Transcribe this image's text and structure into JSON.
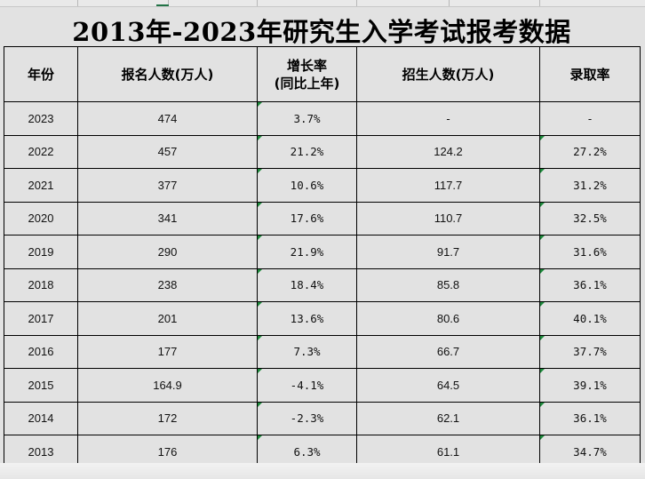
{
  "title": "2013年-2023年研究生入学考试报考数据",
  "headers": {
    "year": "年份",
    "applicants": "报名人数(万人)",
    "growth_line1": "增长率",
    "growth_line2": "(同比上年)",
    "enrolled": "招生人数(万人)",
    "admission_rate": "录取率"
  },
  "rows": [
    {
      "year": "2023",
      "applicants": "474",
      "growth": "3.7%",
      "enrolled": "-",
      "rate": "-"
    },
    {
      "year": "2022",
      "applicants": "457",
      "growth": "21.2%",
      "enrolled": "124.2",
      "rate": "27.2%"
    },
    {
      "year": "2021",
      "applicants": "377",
      "growth": "10.6%",
      "enrolled": "117.7",
      "rate": "31.2%"
    },
    {
      "year": "2020",
      "applicants": "341",
      "growth": "17.6%",
      "enrolled": "110.7",
      "rate": "32.5%"
    },
    {
      "year": "2019",
      "applicants": "290",
      "growth": "21.9%",
      "enrolled": "91.7",
      "rate": "31.6%"
    },
    {
      "year": "2018",
      "applicants": "238",
      "growth": "18.4%",
      "enrolled": "85.8",
      "rate": "36.1%"
    },
    {
      "year": "2017",
      "applicants": "201",
      "growth": "13.6%",
      "enrolled": "80.6",
      "rate": "40.1%"
    },
    {
      "year": "2016",
      "applicants": "177",
      "growth": "7.3%",
      "enrolled": "66.7",
      "rate": "37.7%"
    },
    {
      "year": "2015",
      "applicants": "164.9",
      "growth": "-4.1%",
      "enrolled": "64.5",
      "rate": "39.1%"
    },
    {
      "year": "2014",
      "applicants": "172",
      "growth": "-2.3%",
      "enrolled": "62.1",
      "rate": "36.1%"
    },
    {
      "year": "2013",
      "applicants": "176",
      "growth": "6.3%",
      "enrolled": "61.1",
      "rate": "34.7%"
    }
  ],
  "colors": {
    "cell_border": "#000000",
    "error_indicator": "#1e8a3c",
    "selection_accent": "#217346"
  }
}
